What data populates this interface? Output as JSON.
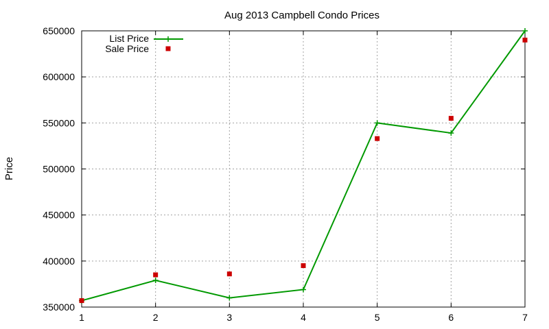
{
  "chart_data": {
    "type": "line",
    "title": "Aug 2013 Campbell Condo Prices",
    "xlabel": "",
    "ylabel": "Price",
    "x": [
      1,
      2,
      3,
      4,
      5,
      6,
      7
    ],
    "xlim": [
      1,
      7
    ],
    "ylim": [
      350000,
      650000
    ],
    "x_ticks": [
      "1",
      "2",
      "3",
      "4",
      "5",
      "6",
      "7"
    ],
    "y_ticks": [
      "350000",
      "400000",
      "450000",
      "500000",
      "550000",
      "600000",
      "650000"
    ],
    "grid": true,
    "legend_position": "top-left",
    "series": [
      {
        "name": "List Price",
        "style": "line with plus markers",
        "color": "#009900",
        "values": [
          357000,
          379000,
          360000,
          369000,
          550000,
          539000,
          650000
        ]
      },
      {
        "name": "Sale Price",
        "style": "square points",
        "color": "#cc0000",
        "values": [
          357000,
          385000,
          386000,
          395000,
          533000,
          555000,
          640000
        ]
      }
    ]
  }
}
